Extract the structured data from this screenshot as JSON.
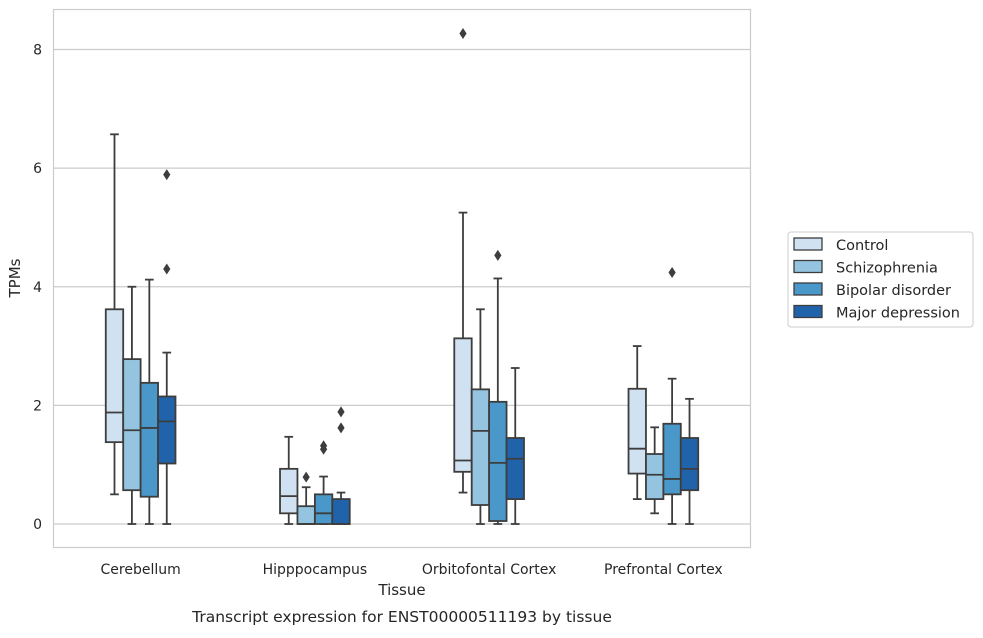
{
  "chart_data": {
    "type": "box",
    "title": "",
    "caption": "Transcript expression for ENST00000511193 by tissue",
    "xlabel": "Tissue",
    "ylabel": "TPMs",
    "ylim": [
      -0.4,
      8.7
    ],
    "yticks": [
      0,
      2,
      4,
      6,
      8
    ],
    "grid": "horizontal",
    "legend_position": "right",
    "categories": [
      "Cerebellum",
      "Hipppocampus",
      "Orbitofontal Cortex",
      "Prefrontal Cortex"
    ],
    "series": [
      {
        "name": "Control",
        "color": "#d0e1f2",
        "boxes": [
          {
            "whislo": 0.5,
            "q1": 1.38,
            "med": 1.88,
            "q3": 3.62,
            "whishi": 6.57,
            "fliers": []
          },
          {
            "whislo": 0.0,
            "q1": 0.18,
            "med": 0.47,
            "q3": 0.93,
            "whishi": 1.47,
            "fliers": []
          },
          {
            "whislo": 0.53,
            "q1": 0.88,
            "med": 1.07,
            "q3": 3.13,
            "whishi": 5.25,
            "fliers": [
              8.27
            ]
          },
          {
            "whislo": 0.42,
            "q1": 0.85,
            "med": 1.27,
            "q3": 2.28,
            "whishi": 3.0,
            "fliers": []
          }
        ]
      },
      {
        "name": "Schizophrenia",
        "color": "#94c4df",
        "boxes": [
          {
            "whislo": 0.0,
            "q1": 0.57,
            "med": 1.58,
            "q3": 2.78,
            "whishi": 4.0,
            "fliers": []
          },
          {
            "whislo": 0.0,
            "q1": 0.0,
            "med": 0.0,
            "q3": 0.3,
            "whishi": 0.62,
            "fliers": [
              0.79
            ]
          },
          {
            "whislo": 0.0,
            "q1": 0.32,
            "med": 1.57,
            "q3": 2.27,
            "whishi": 3.62,
            "fliers": []
          },
          {
            "whislo": 0.18,
            "q1": 0.42,
            "med": 0.83,
            "q3": 1.18,
            "whishi": 1.63,
            "fliers": []
          }
        ]
      },
      {
        "name": "Bipolar disorder",
        "color": "#4a98c9",
        "boxes": [
          {
            "whislo": 0.0,
            "q1": 0.46,
            "med": 1.62,
            "q3": 2.38,
            "whishi": 4.12,
            "fliers": []
          },
          {
            "whislo": 0.0,
            "q1": 0.0,
            "med": 0.18,
            "q3": 0.5,
            "whishi": 0.8,
            "fliers": [
              1.26,
              1.32
            ]
          },
          {
            "whislo": 0.0,
            "q1": 0.05,
            "med": 1.03,
            "q3": 2.06,
            "whishi": 4.14,
            "fliers": [
              4.53
            ]
          },
          {
            "whislo": 0.0,
            "q1": 0.5,
            "med": 0.76,
            "q3": 1.69,
            "whishi": 2.45,
            "fliers": [
              4.24
            ]
          }
        ]
      },
      {
        "name": "Major depression",
        "color": "#2163aa",
        "boxes": [
          {
            "whislo": 0.0,
            "q1": 1.02,
            "med": 1.73,
            "q3": 2.15,
            "whishi": 2.89,
            "fliers": [
              4.3,
              5.89
            ]
          },
          {
            "whislo": 0.0,
            "q1": 0.0,
            "med": 0.0,
            "q3": 0.42,
            "whishi": 0.53,
            "fliers": [
              1.62,
              1.89
            ]
          },
          {
            "whislo": 0.0,
            "q1": 0.42,
            "med": 1.1,
            "q3": 1.45,
            "whishi": 2.63,
            "fliers": []
          },
          {
            "whislo": 0.0,
            "q1": 0.57,
            "med": 0.93,
            "q3": 1.45,
            "whishi": 2.11,
            "fliers": []
          }
        ]
      }
    ]
  }
}
